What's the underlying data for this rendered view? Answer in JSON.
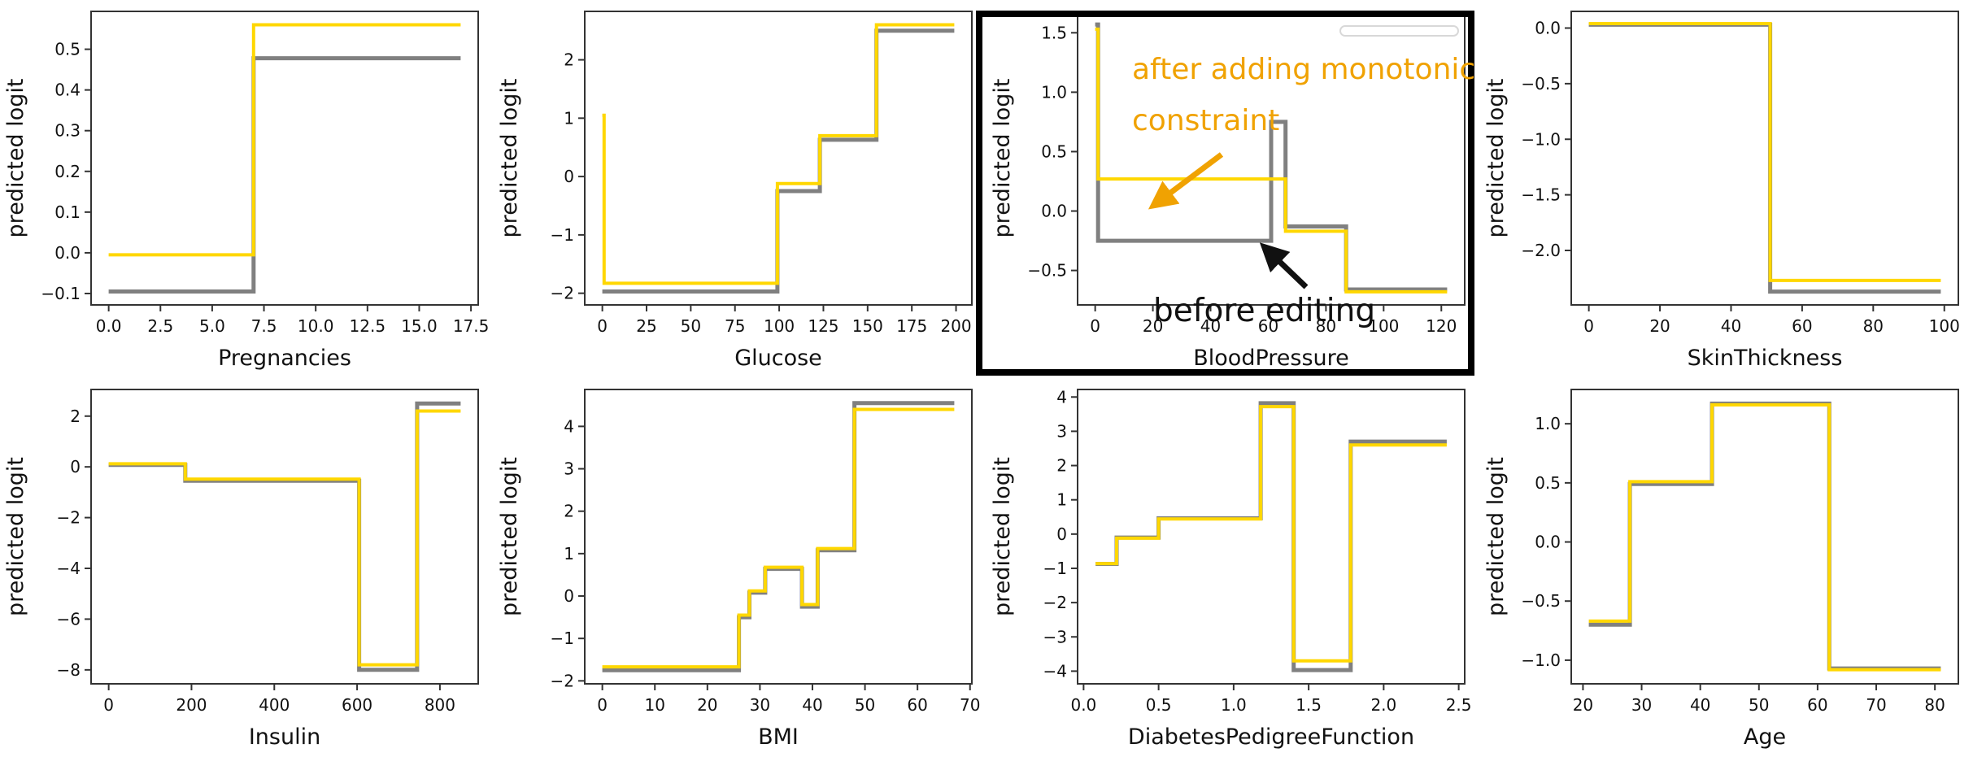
{
  "figure": {
    "title": "",
    "ylabel": "predicted logit",
    "colors": {
      "before_line": "#808080",
      "after_line": "#FFD700",
      "spine": "#333333",
      "tick_text": "#111111",
      "background": "#ffffff"
    }
  },
  "annotations": {
    "after_label": "after adding monotonic constraint",
    "after_color": "#F0A202",
    "before_label": "before editing",
    "before_color": "#111111",
    "highlight_border_color": "#000000"
  },
  "chart_data": [
    {
      "type": "step",
      "xlabel": "Pregnancies",
      "ylabel": "predicted logit",
      "xlim": [
        -0.85,
        17.85
      ],
      "ylim": [
        -0.128,
        0.593
      ],
      "xticks": [
        0,
        2.5,
        5,
        7.5,
        10,
        12.5,
        15,
        17.5
      ],
      "xtick_labels": [
        "0.0",
        "2.5",
        "5.0",
        "7.5",
        "10.0",
        "12.5",
        "15.0",
        "17.5"
      ],
      "yticks": [
        -0.1,
        0.0,
        0.1,
        0.2,
        0.3,
        0.4,
        0.5
      ],
      "ytick_labels": [
        "−0.1",
        "0.0",
        "0.1",
        "0.2",
        "0.3",
        "0.4",
        "0.5"
      ],
      "grid": false,
      "highlighted": false,
      "series": [
        {
          "name": "before editing",
          "color": "#808080",
          "x_edges": [
            0,
            7,
            17
          ],
          "levels": [
            -0.095,
            0.478
          ]
        },
        {
          "name": "after adding monotonic constraint",
          "color": "#FFD700",
          "x_edges": [
            0,
            7,
            17
          ],
          "levels": [
            -0.005,
            0.56
          ]
        }
      ]
    },
    {
      "type": "step",
      "xlabel": "Glucose",
      "ylabel": "predicted logit",
      "xlim": [
        -9.95,
        208.95
      ],
      "ylim": [
        -2.2,
        2.83
      ],
      "xticks": [
        0,
        25,
        50,
        75,
        100,
        125,
        150,
        175,
        200
      ],
      "xtick_labels": [
        "0",
        "25",
        "50",
        "75",
        "100",
        "125",
        "150",
        "175",
        "200"
      ],
      "yticks": [
        -2,
        -1,
        0,
        1,
        2
      ],
      "ytick_labels": [
        "−2",
        "−1",
        "0",
        "1",
        "2"
      ],
      "grid": false,
      "highlighted": false,
      "series": [
        {
          "name": "before editing",
          "color": "#808080",
          "x_edges": [
            0,
            99,
            123,
            155,
            199
          ],
          "levels": [
            -1.97,
            -0.25,
            0.63,
            2.5
          ]
        },
        {
          "name": "after adding monotonic constraint",
          "color": "#FFD700",
          "x_edges": [
            0,
            1,
            99,
            123,
            155,
            199
          ],
          "levels": [
            1.05,
            -1.83,
            -0.12,
            0.7,
            2.6
          ]
        }
      ]
    },
    {
      "type": "step",
      "xlabel": "BloodPressure",
      "ylabel": "predicted logit",
      "xlim": [
        -6.1,
        128.1
      ],
      "ylim": [
        -0.79,
        1.68
      ],
      "xticks": [
        0,
        20,
        40,
        60,
        80,
        100,
        120
      ],
      "xtick_labels": [
        "0",
        "20",
        "40",
        "60",
        "80",
        "100",
        "120"
      ],
      "yticks": [
        -0.5,
        0.0,
        0.5,
        1.0,
        1.5
      ],
      "ytick_labels": [
        "−0.5",
        "0.0",
        "0.5",
        "1.0",
        "1.5"
      ],
      "grid": false,
      "highlighted": true,
      "series": [
        {
          "name": "before editing",
          "color": "#808080",
          "x_edges": [
            0,
            1,
            61,
            66,
            87,
            122
          ],
          "levels": [
            1.57,
            -0.25,
            0.75,
            -0.13,
            -0.66
          ]
        },
        {
          "name": "after adding monotonic constraint",
          "color": "#FFD700",
          "x_edges": [
            0,
            1,
            66,
            87,
            122
          ],
          "levels": [
            1.53,
            0.27,
            -0.17,
            -0.68
          ]
        }
      ]
    },
    {
      "type": "step",
      "xlabel": "SkinThickness",
      "ylabel": "predicted logit",
      "xlim": [
        -4.95,
        103.95
      ],
      "ylim": [
        -2.49,
        0.15
      ],
      "xticks": [
        0,
        20,
        40,
        60,
        80,
        100
      ],
      "xtick_labels": [
        "0",
        "20",
        "40",
        "60",
        "80",
        "100"
      ],
      "yticks": [
        -2.0,
        -1.5,
        -1.0,
        -0.5,
        0.0
      ],
      "ytick_labels": [
        "−2.0",
        "−1.5",
        "−1.0",
        "−0.5",
        "0.0"
      ],
      "grid": false,
      "highlighted": false,
      "series": [
        {
          "name": "before editing",
          "color": "#808080",
          "x_edges": [
            0,
            51,
            99
          ],
          "levels": [
            0.03,
            -2.37
          ]
        },
        {
          "name": "after adding monotonic constraint",
          "color": "#FFD700",
          "x_edges": [
            0,
            51,
            99
          ],
          "levels": [
            0.04,
            -2.27
          ]
        }
      ]
    },
    {
      "type": "step",
      "xlabel": "Insulin",
      "ylabel": "predicted logit",
      "xlim": [
        -42.5,
        892.5
      ],
      "ylim": [
        -8.55,
        3.05
      ],
      "xticks": [
        0,
        200,
        400,
        600,
        800
      ],
      "xtick_labels": [
        "0",
        "200",
        "400",
        "600",
        "800"
      ],
      "yticks": [
        -8,
        -6,
        -4,
        -2,
        0,
        2
      ],
      "ytick_labels": [
        "−8",
        "−6",
        "−4",
        "−2",
        "0",
        "2"
      ],
      "grid": false,
      "highlighted": false,
      "series": [
        {
          "name": "before editing",
          "color": "#808080",
          "x_edges": [
            0,
            185,
            605,
            745,
            850
          ],
          "levels": [
            0.08,
            -0.55,
            -8.0,
            2.5
          ]
        },
        {
          "name": "after adding monotonic constraint",
          "color": "#FFD700",
          "x_edges": [
            0,
            185,
            605,
            745,
            850
          ],
          "levels": [
            0.12,
            -0.48,
            -7.8,
            2.2
          ]
        }
      ]
    },
    {
      "type": "step",
      "xlabel": "BMI",
      "ylabel": "predicted logit",
      "xlim": [
        -3.35,
        70.35
      ],
      "ylim": [
        -2.07,
        4.87
      ],
      "xticks": [
        0,
        10,
        20,
        30,
        40,
        50,
        60,
        70
      ],
      "xtick_labels": [
        "0",
        "10",
        "20",
        "30",
        "40",
        "50",
        "60",
        "70"
      ],
      "yticks": [
        -2,
        -1,
        0,
        1,
        2,
        3,
        4
      ],
      "ytick_labels": [
        "−2",
        "−1",
        "0",
        "1",
        "2",
        "3",
        "4"
      ],
      "grid": false,
      "highlighted": false,
      "series": [
        {
          "name": "before editing",
          "color": "#808080",
          "x_edges": [
            0,
            26,
            28,
            31,
            38,
            41,
            48,
            67
          ],
          "levels": [
            -1.75,
            -0.5,
            0.08,
            0.64,
            -0.25,
            1.08,
            4.55
          ]
        },
        {
          "name": "after adding monotonic constraint",
          "color": "#FFD700",
          "x_edges": [
            0,
            26,
            28,
            31,
            38,
            41,
            48,
            67
          ],
          "levels": [
            -1.67,
            -0.45,
            0.12,
            0.68,
            -0.2,
            1.12,
            4.4
          ]
        }
      ]
    },
    {
      "type": "step",
      "xlabel": "DiabetesPedigreeFunction",
      "ylabel": "predicted logit",
      "xlim": [
        -0.04,
        2.54
      ],
      "ylim": [
        -4.37,
        4.22
      ],
      "xticks": [
        0.0,
        0.5,
        1.0,
        1.5,
        2.0,
        2.5
      ],
      "xtick_labels": [
        "0.0",
        "0.5",
        "1.0",
        "1.5",
        "2.0",
        "2.5"
      ],
      "yticks": [
        -4,
        -3,
        -2,
        -1,
        0,
        1,
        2,
        3,
        4
      ],
      "ytick_labels": [
        "−4",
        "−3",
        "−2",
        "−1",
        "0",
        "1",
        "2",
        "3",
        "4"
      ],
      "grid": false,
      "highlighted": false,
      "series": [
        {
          "name": "before editing",
          "color": "#808080",
          "x_edges": [
            0.08,
            0.22,
            0.5,
            1.18,
            1.4,
            1.78,
            2.42
          ],
          "levels": [
            -0.87,
            -0.1,
            0.46,
            3.82,
            -3.97,
            2.7
          ]
        },
        {
          "name": "after adding monotonic constraint",
          "color": "#FFD700",
          "x_edges": [
            0.08,
            0.22,
            0.5,
            1.18,
            1.4,
            1.78,
            2.42
          ],
          "levels": [
            -0.86,
            -0.12,
            0.44,
            3.72,
            -3.7,
            2.6
          ]
        }
      ]
    },
    {
      "type": "step",
      "xlabel": "Age",
      "ylabel": "predicted logit",
      "xlim": [
        18,
        84
      ],
      "ylim": [
        -1.2,
        1.29
      ],
      "xticks": [
        20,
        30,
        40,
        50,
        60,
        70,
        80
      ],
      "xtick_labels": [
        "20",
        "30",
        "40",
        "50",
        "60",
        "70",
        "80"
      ],
      "yticks": [
        -1.0,
        -0.5,
        0.0,
        0.5,
        1.0
      ],
      "ytick_labels": [
        "−1.0",
        "−0.5",
        "0.0",
        "0.5",
        "1.0"
      ],
      "grid": false,
      "highlighted": false,
      "series": [
        {
          "name": "before editing",
          "color": "#808080",
          "x_edges": [
            21,
            28,
            42,
            62,
            81
          ],
          "levels": [
            -0.7,
            0.49,
            1.17,
            -1.07
          ]
        },
        {
          "name": "after adding monotonic constraint",
          "color": "#FFD700",
          "x_edges": [
            21,
            28,
            42,
            62,
            81
          ],
          "levels": [
            -0.67,
            0.51,
            1.16,
            -1.08
          ]
        }
      ]
    }
  ]
}
